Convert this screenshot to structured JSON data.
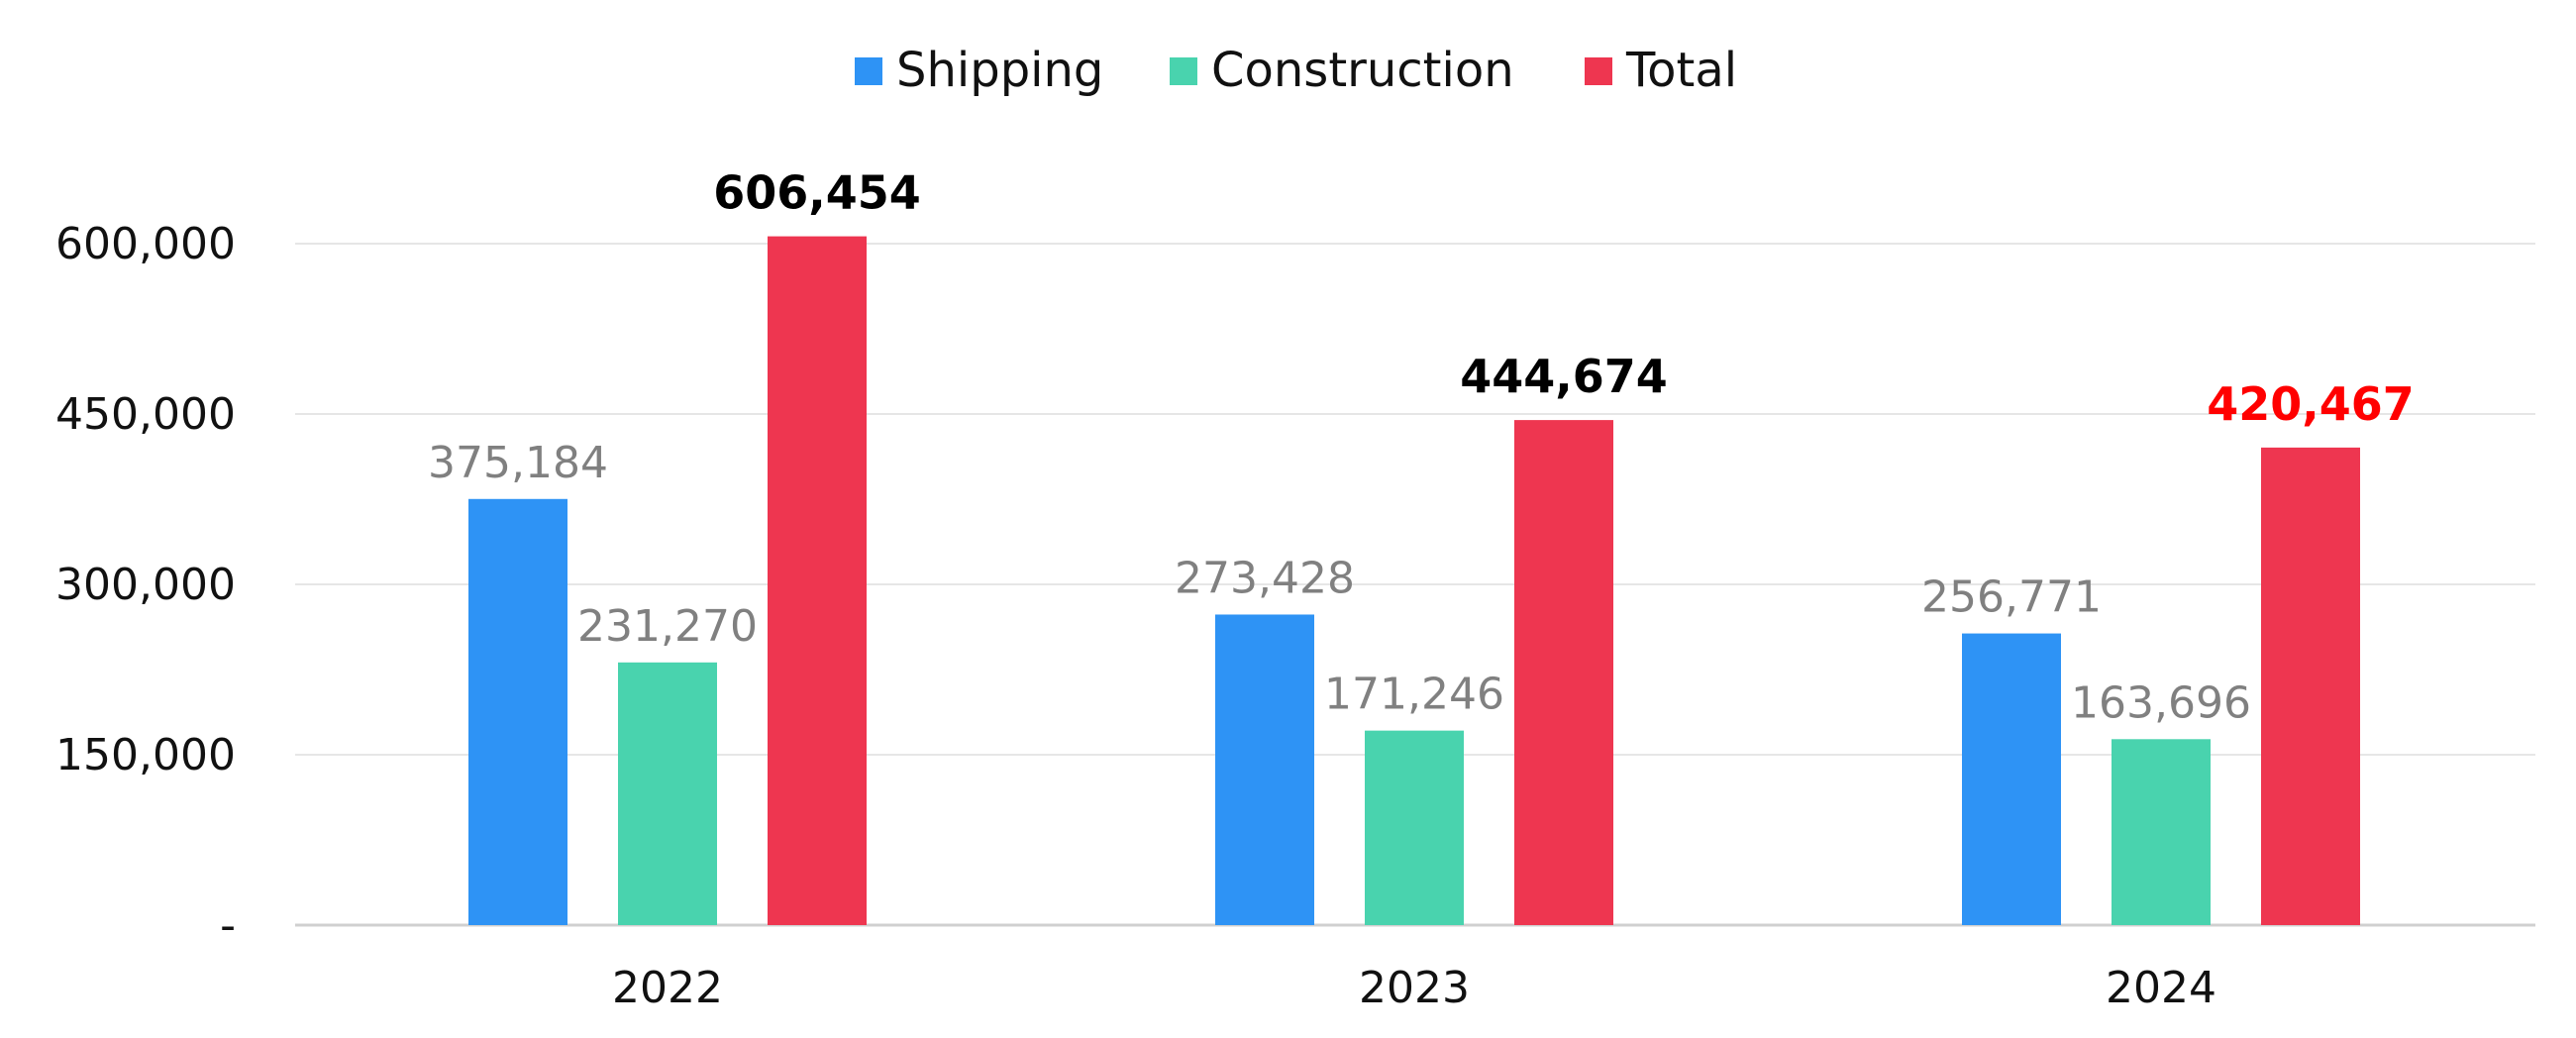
{
  "chart_data": {
    "type": "bar",
    "categories": [
      "2022",
      "2023",
      "2024"
    ],
    "series": [
      {
        "name": "Shipping",
        "color": "#2e93f5",
        "values": [
          375184,
          273428,
          256771
        ],
        "labels": [
          "375,184",
          "273,428",
          "256,771"
        ],
        "label_color": "#808080"
      },
      {
        "name": "Construction",
        "color": "#49d3ae",
        "values": [
          231270,
          171246,
          163696
        ],
        "labels": [
          "231,270",
          "171,246",
          "163,696"
        ],
        "label_color": "#808080"
      },
      {
        "name": "Total",
        "color": "#ee3650",
        "values": [
          606454,
          444674,
          420467
        ],
        "labels": [
          "606,454",
          "444,674",
          "420,467"
        ],
        "label_colors": [
          "#000000",
          "#000000",
          "#ff0000"
        ],
        "label_bold": true
      }
    ],
    "y_ticks": [
      {
        "value": 0,
        "label": "-"
      },
      {
        "value": 150000,
        "label": "150,000"
      },
      {
        "value": 300000,
        "label": "300,000"
      },
      {
        "value": 450000,
        "label": "450,000"
      },
      {
        "value": 600000,
        "label": "600,000"
      }
    ],
    "ylim": [
      0,
      600000
    ],
    "title": "",
    "xlabel": "",
    "ylabel": "",
    "grid": true,
    "legend_position": "top-center",
    "gridline_color": "#e6e6e6",
    "axis_color": "#d0d0d0"
  }
}
